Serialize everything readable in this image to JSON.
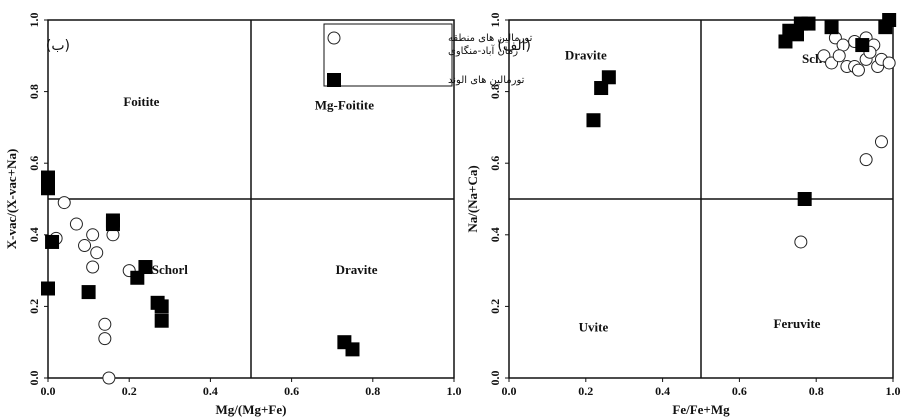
{
  "chart_data": [
    {
      "type": "scatter",
      "panel_label": "(ب)",
      "xlabel": "Mg/(Mg+Fe)",
      "ylabel": "X-vac/(X-vac+Na)",
      "xlim": [
        0,
        1.0
      ],
      "ylim": [
        0,
        1.0
      ],
      "xticks": [
        "0.0",
        "0.2",
        "0.4",
        "0.6",
        "0.8",
        "1.0"
      ],
      "yticks": [
        "0.0",
        "0.2",
        "0.4",
        "0.6",
        "0.8",
        "1.0"
      ],
      "divider_x": 0.5,
      "divider_y": 0.5,
      "regions": [
        {
          "label": "Foitite",
          "x": 0.23,
          "y": 0.76
        },
        {
          "label": "Mg-Foitite",
          "x": 0.73,
          "y": 0.75
        },
        {
          "label": "Schorl",
          "x": 0.3,
          "y": 0.29
        },
        {
          "label": "Dravite",
          "x": 0.76,
          "y": 0.29
        }
      ],
      "legend": {
        "placement": "top-right",
        "entries": [
          {
            "label_lines": [
              "تورمالین های منطقه",
              "زمان آباد-منگاوی"
            ],
            "marker": "circle"
          },
          {
            "label_lines": [
              "تورمالین های الوند"
            ],
            "marker": "square"
          }
        ]
      },
      "series": [
        {
          "marker": "circle",
          "points": [
            [
              0.04,
              0.49
            ],
            [
              0.02,
              0.39
            ],
            [
              0.07,
              0.43
            ],
            [
              0.09,
              0.37
            ],
            [
              0.11,
              0.4
            ],
            [
              0.11,
              0.31
            ],
            [
              0.12,
              0.35
            ],
            [
              0.16,
              0.4
            ],
            [
              0.2,
              0.3
            ],
            [
              0.14,
              0.15
            ],
            [
              0.14,
              0.11
            ],
            [
              0.15,
              0.0
            ]
          ]
        },
        {
          "marker": "square",
          "points": [
            [
              0.0,
              0.53
            ],
            [
              0.0,
              0.56
            ],
            [
              0.01,
              0.38
            ],
            [
              0.0,
              0.25
            ],
            [
              0.1,
              0.24
            ],
            [
              0.16,
              0.44
            ],
            [
              0.16,
              0.43
            ],
            [
              0.22,
              0.28
            ],
            [
              0.24,
              0.31
            ],
            [
              0.27,
              0.21
            ],
            [
              0.28,
              0.2
            ],
            [
              0.28,
              0.16
            ],
            [
              0.73,
              0.1
            ],
            [
              0.75,
              0.08
            ]
          ]
        }
      ]
    },
    {
      "type": "scatter",
      "panel_label": "(الف)",
      "xlabel": "Fe/Fe+Mg",
      "ylabel": "Na/(Na+Ca)",
      "xlim": [
        0,
        1.0
      ],
      "ylim": [
        0,
        1.0
      ],
      "xticks": [
        "0.0",
        "0.2",
        "0.4",
        "0.6",
        "0.8",
        "1.0"
      ],
      "yticks": [
        "0.0",
        "0.2",
        "0.4",
        "0.6",
        "0.8",
        "1.0"
      ],
      "divider_x": 0.5,
      "divider_y": 0.5,
      "regions": [
        {
          "label": "Dravite",
          "x": 0.2,
          "y": 0.89
        },
        {
          "label": "Schorl",
          "x": 0.81,
          "y": 0.88
        },
        {
          "label": "Uvite",
          "x": 0.22,
          "y": 0.13
        },
        {
          "label": "Feruvite",
          "x": 0.75,
          "y": 0.14
        }
      ],
      "series": [
        {
          "marker": "circle",
          "points": [
            [
              0.85,
              0.95
            ],
            [
              0.87,
              0.93
            ],
            [
              0.9,
              0.94
            ],
            [
              0.93,
              0.95
            ],
            [
              0.95,
              0.93
            ],
            [
              0.82,
              0.9
            ],
            [
              0.84,
              0.88
            ],
            [
              0.86,
              0.9
            ],
            [
              0.88,
              0.87
            ],
            [
              0.9,
              0.87
            ],
            [
              0.91,
              0.86
            ],
            [
              0.93,
              0.89
            ],
            [
              0.94,
              0.91
            ],
            [
              0.96,
              0.87
            ],
            [
              0.97,
              0.89
            ],
            [
              0.99,
              0.88
            ],
            [
              0.97,
              0.66
            ],
            [
              0.93,
              0.61
            ],
            [
              0.76,
              0.38
            ]
          ]
        },
        {
          "marker": "square",
          "points": [
            [
              0.22,
              0.72
            ],
            [
              0.24,
              0.81
            ],
            [
              0.26,
              0.84
            ],
            [
              0.72,
              0.94
            ],
            [
              0.73,
              0.97
            ],
            [
              0.75,
              0.96
            ],
            [
              0.76,
              0.99
            ],
            [
              0.78,
              0.99
            ],
            [
              0.84,
              0.98
            ],
            [
              0.92,
              0.93
            ],
            [
              0.98,
              0.98
            ],
            [
              0.99,
              1.0
            ],
            [
              0.77,
              0.5
            ]
          ]
        }
      ]
    }
  ]
}
